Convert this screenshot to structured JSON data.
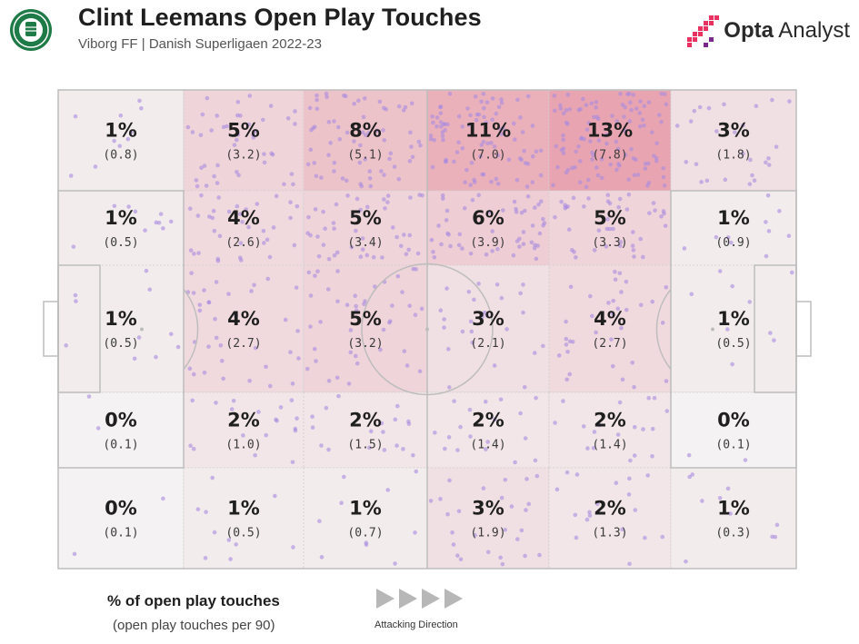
{
  "header": {
    "title": "Clint Leemans Open Play Touches",
    "subtitle": "Viborg FF | Danish Superligaen 2022-23",
    "brand_bold": "Opta",
    "brand_light": " Analyst"
  },
  "legend": {
    "title": "% of open play touches",
    "subtitle": "(open play touches per 90)",
    "direction_label": "Attacking Direction"
  },
  "colors": {
    "heat_max": "#e8a5b1",
    "heat_min": "#f4f2f2",
    "dots": "#a98be0",
    "lines": "#bdbdbd"
  },
  "chart_data": {
    "type": "heatmap",
    "columns": 6,
    "rows": 5,
    "cells": [
      [
        {
          "pct": "1%",
          "p90": "(0.8)",
          "value": 1
        },
        {
          "pct": "5%",
          "p90": "(3.2)",
          "value": 5
        },
        {
          "pct": "8%",
          "p90": "(5.1)",
          "value": 8
        },
        {
          "pct": "11%",
          "p90": "(7.0)",
          "value": 11
        },
        {
          "pct": "13%",
          "p90": "(7.8)",
          "value": 13
        },
        {
          "pct": "3%",
          "p90": "(1.8)",
          "value": 3
        }
      ],
      [
        {
          "pct": "1%",
          "p90": "(0.5)",
          "value": 1
        },
        {
          "pct": "4%",
          "p90": "(2.6)",
          "value": 4
        },
        {
          "pct": "5%",
          "p90": "(3.4)",
          "value": 5
        },
        {
          "pct": "6%",
          "p90": "(3.9)",
          "value": 6
        },
        {
          "pct": "5%",
          "p90": "(3.3)",
          "value": 5
        },
        {
          "pct": "1%",
          "p90": "(0.9)",
          "value": 1
        }
      ],
      [
        {
          "pct": "1%",
          "p90": "(0.5)",
          "value": 1
        },
        {
          "pct": "4%",
          "p90": "(2.7)",
          "value": 4
        },
        {
          "pct": "5%",
          "p90": "(3.2)",
          "value": 5
        },
        {
          "pct": "3%",
          "p90": "(2.1)",
          "value": 3
        },
        {
          "pct": "4%",
          "p90": "(2.7)",
          "value": 4
        },
        {
          "pct": "1%",
          "p90": "(0.5)",
          "value": 1
        }
      ],
      [
        {
          "pct": "0%",
          "p90": "(0.1)",
          "value": 0
        },
        {
          "pct": "2%",
          "p90": "(1.0)",
          "value": 2
        },
        {
          "pct": "2%",
          "p90": "(1.5)",
          "value": 2
        },
        {
          "pct": "2%",
          "p90": "(1.4)",
          "value": 2
        },
        {
          "pct": "2%",
          "p90": "(1.4)",
          "value": 2
        },
        {
          "pct": "0%",
          "p90": "(0.1)",
          "value": 0
        }
      ],
      [
        {
          "pct": "0%",
          "p90": "(0.1)",
          "value": 0
        },
        {
          "pct": "1%",
          "p90": "(0.5)",
          "value": 1
        },
        {
          "pct": "1%",
          "p90": "(0.7)",
          "value": 1
        },
        {
          "pct": "3%",
          "p90": "(1.9)",
          "value": 3
        },
        {
          "pct": "2%",
          "p90": "(1.3)",
          "value": 2
        },
        {
          "pct": "1%",
          "p90": "(0.3)",
          "value": 1
        }
      ]
    ]
  }
}
